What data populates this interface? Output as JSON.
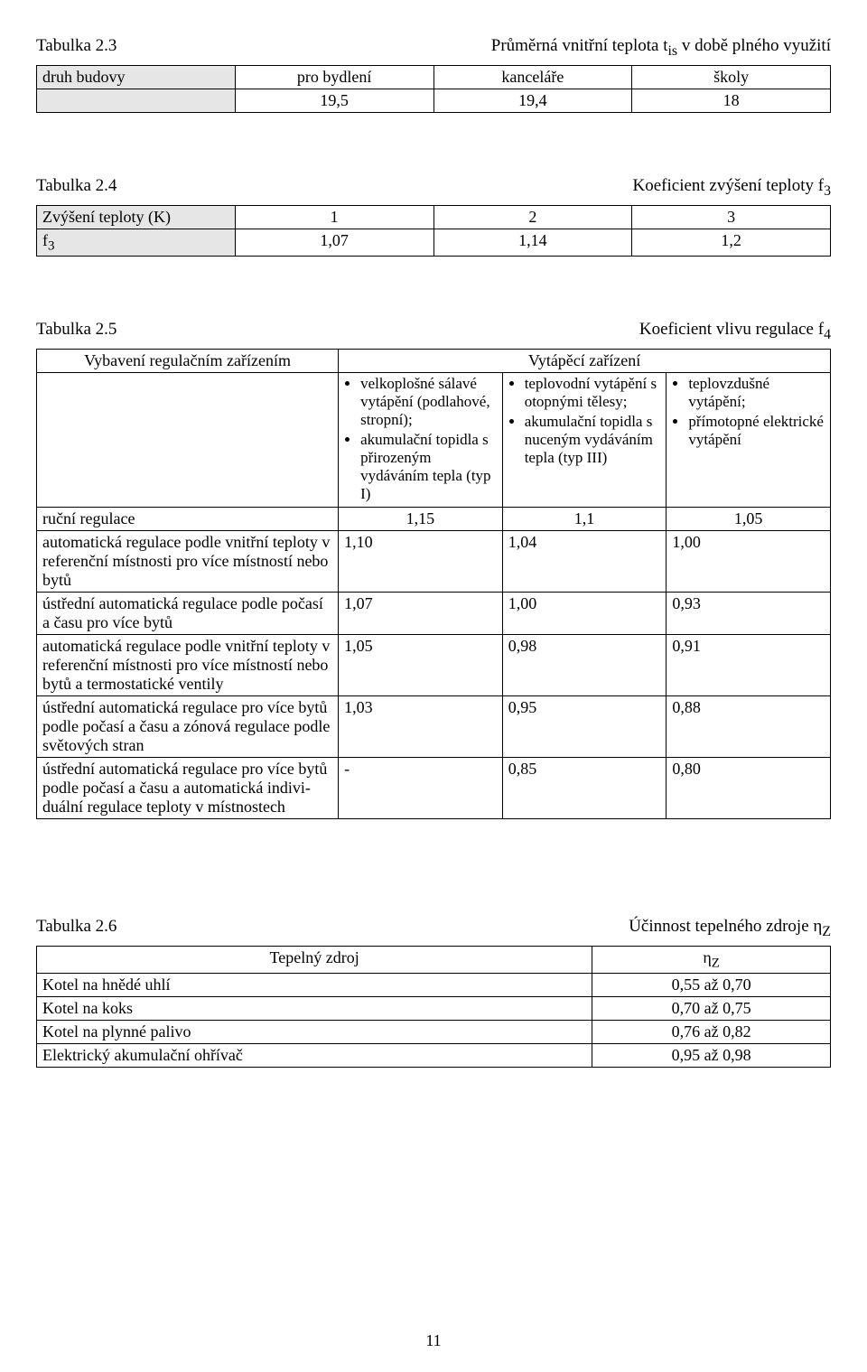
{
  "pageNumber": "11",
  "table23": {
    "captionLeft": "Tabulka 2.3",
    "captionRight": "Průměrná vnitřní teplota t<sub>is</sub> v době plného využití",
    "row1": {
      "label": "druh budovy",
      "c1": "pro bydlení",
      "c2": "kanceláře",
      "c3": "školy"
    },
    "row2": {
      "label": "",
      "c1": "19,5",
      "c2": "19,4",
      "c3": "18"
    }
  },
  "table24": {
    "captionLeft": "Tabulka 2.4",
    "captionRight": "Koeficient zvýšení teploty f<sub>3</sub>",
    "row1": {
      "label": "Zvýšení teploty (K)",
      "c1": "1",
      "c2": "2",
      "c3": "3"
    },
    "row2": {
      "label": "f<sub>3</sub>",
      "c1": "1,07",
      "c2": "1,14",
      "c3": "1,2"
    }
  },
  "table25": {
    "captionLeft": "Tabulka 2.5",
    "captionRight": "Koeficient vlivu regulace f<sub>4</sub>",
    "headerRow": {
      "col0": "Vybavení regulačním  zařízením",
      "col1to3": "Vytápěcí zařízení"
    },
    "bulletsCol1": [
      "velkoplošné sálavé vytápění (podlahové, stropní);",
      "akumulační topidla s přirozeným vydáváním tepla   (typ I)"
    ],
    "bulletsCol2": [
      "teplovodní vytápění s otopnými tělesy;",
      "akumulační topidla s nuceným vydáváním tepla (typ III)"
    ],
    "bulletsCol3": [
      "teplovzdušné vytápění;",
      "přímotopné elektrické vytápění"
    ],
    "rows": [
      {
        "label": "ruční regulace",
        "c1": "1,15",
        "c2": "1,1",
        "c3": "1,05"
      },
      {
        "label": "automatická regulace podle vnitřní teploty v referenční místnosti pro více místností nebo bytů",
        "c1": "1,10",
        "c2": "1,04",
        "c3": "1,00"
      },
      {
        "label": "ústřední automatická regulace podle počasí a času pro více bytů",
        "c1": "1,07",
        "c2": "1,00",
        "c3": "0,93"
      },
      {
        "label": "automatická regulace podle vnitřní teploty v referenční místnosti pro více místností nebo bytů a termostatické ventily",
        "c1": "1,05",
        "c2": "0,98",
        "c3": "0,91"
      },
      {
        "label": "ústřední automatická regulace pro více bytů podle počasí a času a zónová regulace podle světových stran",
        "c1": "1,03",
        "c2": "0,95",
        "c3": "0,88"
      },
      {
        "label": "ústřední automatická regulace pro více bytů podle počasí a času a automatická indivi- duální regulace teploty v místnostech",
        "c1": "-",
        "c2": "0,85",
        "c3": "0,80"
      }
    ]
  },
  "table26": {
    "captionLeft": "Tabulka 2.6",
    "captionRight": "Účinnost tepelného zdroje η<sub>Z</sub>",
    "header": {
      "col0": "Tepelný zdroj",
      "col1": "η<sub>Z</sub>"
    },
    "rows": [
      {
        "label": "Kotel na hnědé uhlí",
        "val": "0,55 až 0,70"
      },
      {
        "label": "Kotel na koks",
        "val": "0,70 až 0,75"
      },
      {
        "label": "Kotel na plynné palivo",
        "val": "0,76 až 0,82"
      },
      {
        "label": "Elektrický akumulační ohřívač",
        "val": "0,95 až 0,98"
      }
    ]
  }
}
